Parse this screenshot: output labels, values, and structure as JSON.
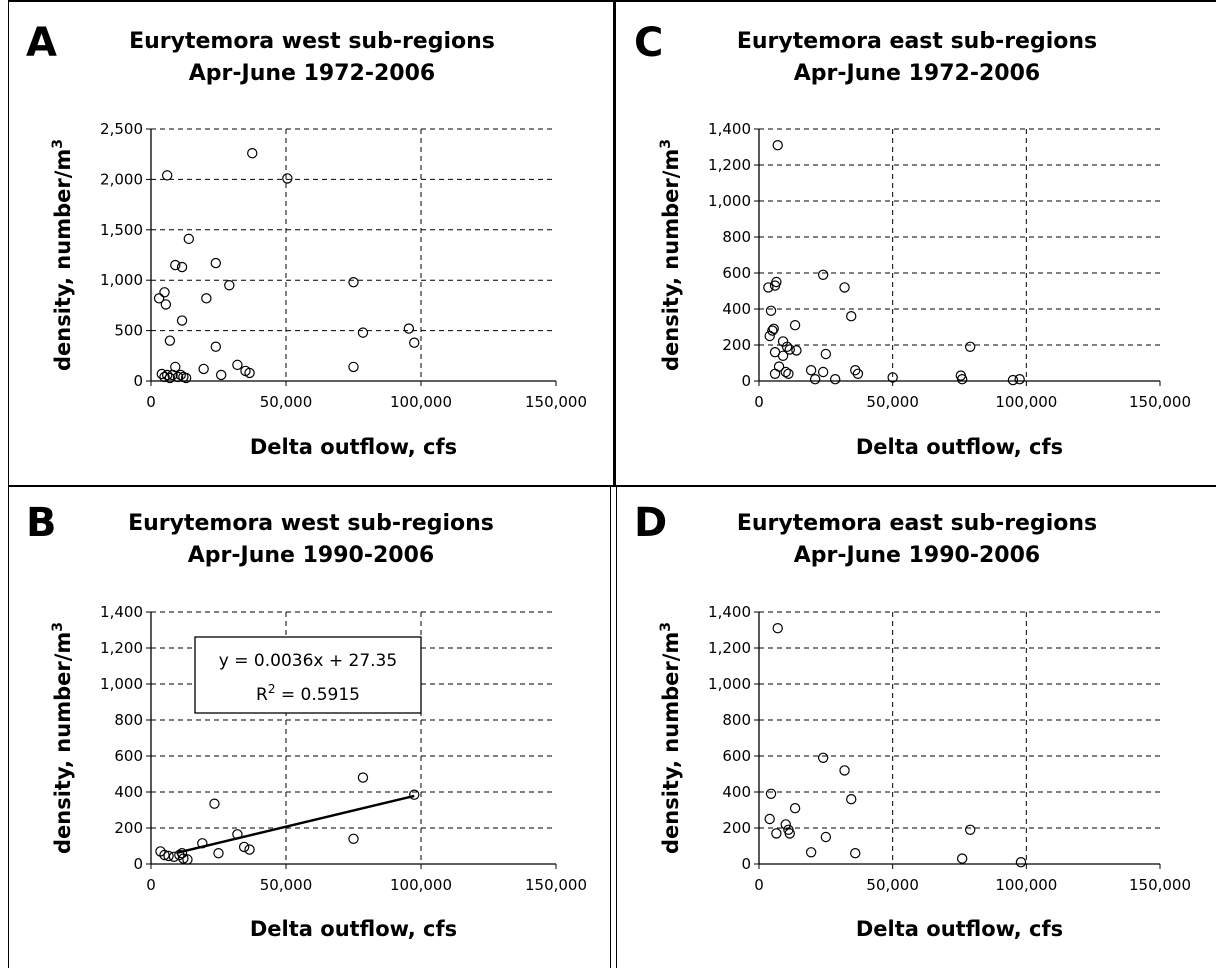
{
  "chart_data": [
    {
      "panel": "A",
      "type": "scatter",
      "title_lines": [
        "Eurytemora west sub-regions",
        "Apr-June 1972-2006"
      ],
      "xlabel": "Delta outflow, cfs",
      "ylabel": "density, number/m",
      "ylabel_sup": "3",
      "xlim": [
        0,
        150000
      ],
      "ylim": [
        0,
        2500
      ],
      "xticks": [
        0,
        50000,
        100000,
        150000
      ],
      "xtick_labels": [
        "0",
        "50,000",
        "100,000",
        "150,000"
      ],
      "yticks": [
        0,
        500,
        1000,
        1500,
        2000,
        2500
      ],
      "ytick_labels": [
        "0",
        "500",
        "1,000",
        "1,500",
        "2,000",
        "2,500"
      ],
      "grid": true,
      "points": [
        {
          "x": 3000,
          "y": 820
        },
        {
          "x": 5000,
          "y": 880
        },
        {
          "x": 5500,
          "y": 760
        },
        {
          "x": 6000,
          "y": 2040
        },
        {
          "x": 7000,
          "y": 400
        },
        {
          "x": 9000,
          "y": 1150
        },
        {
          "x": 11500,
          "y": 1130
        },
        {
          "x": 11500,
          "y": 600
        },
        {
          "x": 14000,
          "y": 1410
        },
        {
          "x": 20500,
          "y": 820
        },
        {
          "x": 24000,
          "y": 1170
        },
        {
          "x": 29000,
          "y": 950
        },
        {
          "x": 37500,
          "y": 2260
        },
        {
          "x": 50500,
          "y": 2010
        },
        {
          "x": 75000,
          "y": 980
        },
        {
          "x": 78500,
          "y": 480
        },
        {
          "x": 95500,
          "y": 520
        },
        {
          "x": 97500,
          "y": 380
        },
        {
          "x": 4000,
          "y": 70
        },
        {
          "x": 5000,
          "y": 40
        },
        {
          "x": 6000,
          "y": 60
        },
        {
          "x": 7000,
          "y": 30
        },
        {
          "x": 8000,
          "y": 60
        },
        {
          "x": 9000,
          "y": 140
        },
        {
          "x": 10000,
          "y": 40
        },
        {
          "x": 11000,
          "y": 60
        },
        {
          "x": 12000,
          "y": 40
        },
        {
          "x": 13000,
          "y": 30
        },
        {
          "x": 19500,
          "y": 120
        },
        {
          "x": 24000,
          "y": 340
        },
        {
          "x": 26000,
          "y": 60
        },
        {
          "x": 32000,
          "y": 160
        },
        {
          "x": 35000,
          "y": 100
        },
        {
          "x": 36500,
          "y": 80
        },
        {
          "x": 75000,
          "y": 140
        }
      ]
    },
    {
      "panel": "C",
      "type": "scatter",
      "title_lines": [
        "Eurytemora east sub-regions",
        "Apr-June 1972-2006"
      ],
      "xlabel": "Delta outflow, cfs",
      "ylabel": "density, number/m",
      "ylabel_sup": "3",
      "xlim": [
        0,
        150000
      ],
      "ylim": [
        0,
        1400
      ],
      "xticks": [
        0,
        50000,
        100000,
        150000
      ],
      "xtick_labels": [
        "0",
        "50,000",
        "100,000",
        "150,000"
      ],
      "yticks": [
        0,
        200,
        400,
        600,
        800,
        1000,
        1200,
        1400
      ],
      "ytick_labels": [
        "0",
        "200",
        "400",
        "600",
        "800",
        "1,000",
        "1,200",
        "1,400"
      ],
      "grid": true,
      "points": [
        {
          "x": 7000,
          "y": 1310
        },
        {
          "x": 3500,
          "y": 520
        },
        {
          "x": 6000,
          "y": 530
        },
        {
          "x": 6500,
          "y": 550
        },
        {
          "x": 24000,
          "y": 590
        },
        {
          "x": 32000,
          "y": 520
        },
        {
          "x": 4500,
          "y": 390
        },
        {
          "x": 34500,
          "y": 360
        },
        {
          "x": 13500,
          "y": 310
        },
        {
          "x": 5000,
          "y": 280
        },
        {
          "x": 5500,
          "y": 290
        },
        {
          "x": 4000,
          "y": 250
        },
        {
          "x": 9000,
          "y": 220
        },
        {
          "x": 10500,
          "y": 190
        },
        {
          "x": 11500,
          "y": 175
        },
        {
          "x": 14000,
          "y": 170
        },
        {
          "x": 6000,
          "y": 160
        },
        {
          "x": 9000,
          "y": 140
        },
        {
          "x": 25000,
          "y": 150
        },
        {
          "x": 79000,
          "y": 190
        },
        {
          "x": 7500,
          "y": 80
        },
        {
          "x": 10000,
          "y": 50
        },
        {
          "x": 11000,
          "y": 40
        },
        {
          "x": 6000,
          "y": 40
        },
        {
          "x": 19500,
          "y": 60
        },
        {
          "x": 24000,
          "y": 50
        },
        {
          "x": 36000,
          "y": 60
        },
        {
          "x": 37000,
          "y": 40
        },
        {
          "x": 21000,
          "y": 10
        },
        {
          "x": 28500,
          "y": 10
        },
        {
          "x": 50000,
          "y": 20
        },
        {
          "x": 75500,
          "y": 30
        },
        {
          "x": 76000,
          "y": 10
        },
        {
          "x": 95000,
          "y": 5
        },
        {
          "x": 97500,
          "y": 10
        }
      ]
    },
    {
      "panel": "B",
      "type": "scatter",
      "title_lines": [
        "Eurytemora west sub-regions",
        "Apr-June 1990-2006"
      ],
      "xlabel": "Delta outflow, cfs",
      "ylabel": "density, number/m",
      "ylabel_sup": "3",
      "xlim": [
        0,
        150000
      ],
      "ylim": [
        0,
        1400
      ],
      "xticks": [
        0,
        50000,
        100000,
        150000
      ],
      "xtick_labels": [
        "0",
        "50,000",
        "100,000",
        "150,000"
      ],
      "yticks": [
        0,
        200,
        400,
        600,
        800,
        1000,
        1200,
        1400
      ],
      "ytick_labels": [
        "0",
        "200",
        "400",
        "600",
        "800",
        "1,000",
        "1,200",
        "1,400"
      ],
      "grid": true,
      "points": [
        {
          "x": 3500,
          "y": 70
        },
        {
          "x": 5000,
          "y": 50
        },
        {
          "x": 6500,
          "y": 45
        },
        {
          "x": 8500,
          "y": 40
        },
        {
          "x": 10500,
          "y": 50
        },
        {
          "x": 11500,
          "y": 60
        },
        {
          "x": 12000,
          "y": 30
        },
        {
          "x": 13500,
          "y": 25
        },
        {
          "x": 19000,
          "y": 115
        },
        {
          "x": 23500,
          "y": 335
        },
        {
          "x": 25000,
          "y": 60
        },
        {
          "x": 32000,
          "y": 165
        },
        {
          "x": 34500,
          "y": 95
        },
        {
          "x": 36500,
          "y": 80
        },
        {
          "x": 75000,
          "y": 140
        },
        {
          "x": 78500,
          "y": 480
        },
        {
          "x": 97500,
          "y": 385
        }
      ],
      "trendline": {
        "equation": "y = 0.0036x + 27.35",
        "r2_label": "R",
        "r2_sup": "2",
        "r2_value": " = 0.5915",
        "slope": 0.0036,
        "intercept": 27.35,
        "x_range": [
          10000,
          97500
        ]
      }
    },
    {
      "panel": "D",
      "type": "scatter",
      "title_lines": [
        "Eurytemora east sub-regions",
        "Apr-June 1990-2006"
      ],
      "xlabel": "Delta outflow, cfs",
      "ylabel": "density, number/m",
      "ylabel_sup": "3",
      "xlim": [
        0,
        150000
      ],
      "ylim": [
        0,
        1400
      ],
      "xticks": [
        0,
        50000,
        100000,
        150000
      ],
      "xtick_labels": [
        "0",
        "50,000",
        "100,000",
        "150,000"
      ],
      "yticks": [
        0,
        200,
        400,
        600,
        800,
        1000,
        1200,
        1400
      ],
      "ytick_labels": [
        "0",
        "200",
        "400",
        "600",
        "800",
        "1,000",
        "1,200",
        "1,400"
      ],
      "grid": true,
      "points": [
        {
          "x": 7000,
          "y": 1310
        },
        {
          "x": 24000,
          "y": 590
        },
        {
          "x": 32000,
          "y": 520
        },
        {
          "x": 4500,
          "y": 390
        },
        {
          "x": 34500,
          "y": 360
        },
        {
          "x": 13500,
          "y": 310
        },
        {
          "x": 4000,
          "y": 250
        },
        {
          "x": 10000,
          "y": 220
        },
        {
          "x": 11000,
          "y": 190
        },
        {
          "x": 11500,
          "y": 170
        },
        {
          "x": 6500,
          "y": 170
        },
        {
          "x": 25000,
          "y": 150
        },
        {
          "x": 79000,
          "y": 190
        },
        {
          "x": 19500,
          "y": 65
        },
        {
          "x": 36000,
          "y": 60
        },
        {
          "x": 76000,
          "y": 30
        },
        {
          "x": 98000,
          "y": 10
        }
      ]
    }
  ]
}
